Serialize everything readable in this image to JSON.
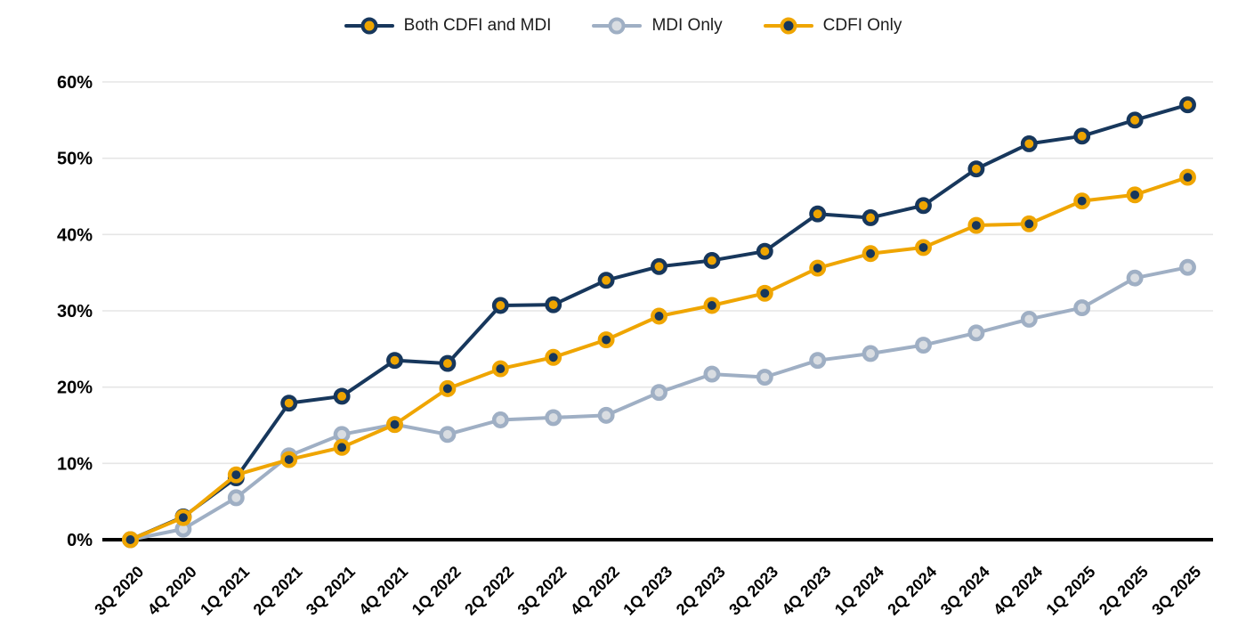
{
  "chart_data": {
    "type": "line",
    "title": "",
    "legend_position": "top",
    "grid": "horizontal",
    "background": "#FFFFFF",
    "gridline_color": "#E6E6E6",
    "axis_color": "#000000",
    "ylim": [
      0,
      60
    ],
    "y_tick_step": 10,
    "y_tick_labels": [
      "0%",
      "10%",
      "20%",
      "30%",
      "40%",
      "50%",
      "60%"
    ],
    "categories": [
      "3Q 2020",
      "4Q 2020",
      "1Q 2021",
      "2Q 2021",
      "3Q 2021",
      "4Q 2021",
      "1Q 2022",
      "2Q 2022",
      "3Q 2022",
      "4Q 2022",
      "1Q 2023",
      "2Q 2023",
      "3Q 2023",
      "4Q 2023",
      "1Q 2024",
      "2Q 2024",
      "3Q 2024",
      "4Q 2024",
      "1Q 2025",
      "2Q 2025",
      "3Q 2025"
    ],
    "series": [
      {
        "name": "Both CDFI and MDI",
        "line_color": "#17375C",
        "marker_fill": "#EFA500",
        "marker_stroke": "#17375C",
        "values": [
          0,
          3.0,
          8.1,
          17.9,
          18.8,
          23.5,
          23.1,
          30.7,
          30.8,
          34.0,
          35.8,
          36.6,
          37.8,
          42.7,
          42.2,
          43.8,
          48.6,
          51.9,
          52.9,
          55.0,
          57.0
        ]
      },
      {
        "name": "MDI Only",
        "line_color": "#9FAFC4",
        "marker_fill": "#D9DDE2",
        "marker_stroke": "#9FAFC4",
        "values": [
          0,
          1.4,
          5.5,
          11.0,
          13.8,
          15.1,
          13.8,
          15.7,
          16.0,
          16.3,
          19.3,
          21.7,
          21.3,
          23.5,
          24.4,
          25.5,
          27.1,
          28.9,
          30.4,
          34.3,
          35.7
        ]
      },
      {
        "name": "CDFI Only",
        "line_color": "#EFA500",
        "marker_fill": "#17375C",
        "marker_stroke": "#EFA500",
        "values": [
          0,
          2.9,
          8.5,
          10.5,
          12.1,
          15.1,
          19.8,
          22.4,
          23.9,
          26.2,
          29.3,
          30.7,
          32.3,
          35.6,
          37.5,
          38.3,
          41.2,
          41.4,
          44.4,
          45.2,
          47.5
        ]
      }
    ]
  }
}
